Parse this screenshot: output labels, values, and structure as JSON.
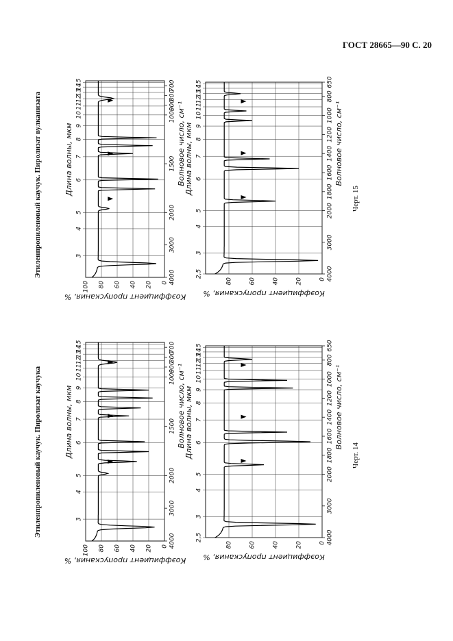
{
  "header": {
    "title": "ГОСТ 28665—90 С. 20"
  },
  "captions": [
    "Этиленпропиленовый каучук. Пиролизат каучука",
    "Этиленпропиленовый каучук. Пиролизат вулканизата"
  ],
  "figures": [
    "Черт. 14",
    "Черт. 15"
  ],
  "panels": [
    {
      "wavelength_label": "Длина волны, мкм",
      "wavenumber_label": "Волновое число, см⁻¹",
      "transmittance_label": "Коэффициент пропускания, %",
      "wavelength_ticks": [
        3,
        4,
        5,
        6,
        7,
        8,
        9,
        10,
        11,
        12,
        13,
        14,
        15
      ],
      "wavenumber_ticks": [
        4000,
        3000,
        2000,
        1500,
        1000,
        900,
        800,
        700
      ],
      "transmittance_ticks": [
        100,
        80,
        60,
        40,
        20,
        0
      ]
    },
    {
      "wavelength_label": "Длина волны, мкм",
      "wavenumber_label": "Волновое число, см⁻¹",
      "transmittance_label": "Коэффициент пропускания, %",
      "wavelength_ticks": [
        {
          "value": 2.5,
          "label": "2,5"
        },
        3,
        4,
        5,
        6,
        7,
        8,
        9,
        10,
        11,
        12,
        13,
        14,
        15
      ],
      "wavenumber_ticks": [
        4000,
        3000,
        2000,
        1800,
        1600,
        1400,
        1200,
        1000,
        800,
        650
      ],
      "transmittance_ticks": [
        80,
        60,
        40,
        20,
        0
      ]
    },
    {
      "wavelength_label": "Длина волны, мкм",
      "wavenumber_label": "Волновое число, см⁻¹",
      "transmittance_label": "Коэффициент пропускания, %",
      "wavelength_ticks": [
        3,
        4,
        5,
        6,
        7,
        8,
        9,
        10,
        11,
        12,
        13,
        14,
        15
      ],
      "wavenumber_ticks": [
        4000,
        3000,
        2000,
        1500,
        1000,
        900,
        800,
        700
      ],
      "transmittance_ticks": [
        100,
        80,
        60,
        40,
        20,
        0
      ]
    },
    {
      "wavelength_label": "Длина волны, мкм",
      "wavenumber_label": "Волновое число, см⁻¹",
      "transmittance_label": "Коэффициент пропускания, %",
      "wavelength_ticks": [
        {
          "value": 2.5,
          "label": "2,5"
        },
        3,
        4,
        5,
        6,
        7,
        8,
        9,
        10,
        11,
        12,
        13,
        14,
        15
      ],
      "wavenumber_ticks": [
        4000,
        3000,
        2000,
        1800,
        1600,
        1400,
        1200,
        1000,
        800,
        650
      ],
      "transmittance_ticks": [
        80,
        60,
        40,
        20,
        0
      ]
    }
  ]
}
